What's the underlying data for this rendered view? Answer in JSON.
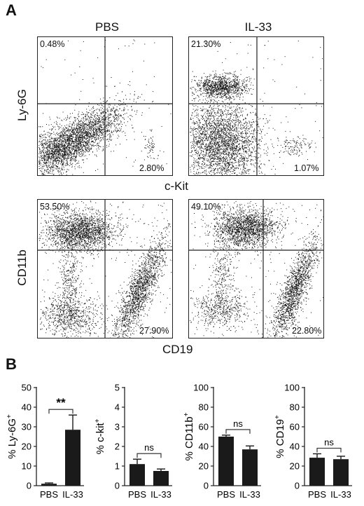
{
  "panel_labels": {
    "a": "A",
    "b": "B"
  },
  "flow_a": {
    "column_titles": [
      "PBS",
      "IL-33"
    ],
    "y_label": "Ly-6G",
    "x_label": "c-Kit",
    "plots": [
      {
        "upper_left": "0.48%",
        "lower_right": "2.80%"
      },
      {
        "upper_left": "21.30%",
        "lower_right": "1.07%"
      }
    ]
  },
  "flow_b": {
    "y_label": "CD11b",
    "x_label": "CD19",
    "plots": [
      {
        "upper_left": "53.50%",
        "lower_right": "27.90%"
      },
      {
        "upper_left": "49.10%",
        "lower_right": "22.80%"
      }
    ]
  },
  "chart_data": [
    {
      "type": "bar",
      "ylabel": "% Ly-6G+",
      "categories": [
        "PBS",
        "IL-33"
      ],
      "values": [
        1,
        28.5
      ],
      "errors": [
        0.4,
        7.5
      ],
      "ylim": [
        0,
        50
      ],
      "yticks": [
        0,
        10,
        20,
        30,
        40,
        50
      ],
      "significance": "**"
    },
    {
      "type": "bar",
      "ylabel": "% c-kit+",
      "categories": [
        "PBS",
        "IL-33"
      ],
      "values": [
        1.1,
        0.75
      ],
      "errors": [
        0.25,
        0.1
      ],
      "ylim": [
        0,
        5
      ],
      "yticks": [
        0,
        1,
        2,
        3,
        4,
        5
      ],
      "significance": "ns"
    },
    {
      "type": "bar",
      "ylabel": "% CD11b+",
      "categories": [
        "PBS",
        "IL-33"
      ],
      "values": [
        50,
        37
      ],
      "errors": [
        1.5,
        3.5
      ],
      "ylim": [
        0,
        100
      ],
      "yticks": [
        0,
        20,
        40,
        60,
        80,
        100
      ],
      "significance": "ns"
    },
    {
      "type": "bar",
      "ylabel": "% CD19+",
      "categories": [
        "PBS",
        "IL-33"
      ],
      "values": [
        28.5,
        27
      ],
      "errors": [
        4,
        3
      ],
      "ylim": [
        0,
        100
      ],
      "yticks": [
        0,
        20,
        40,
        60,
        80,
        100
      ],
      "significance": "ns"
    }
  ],
  "colors": {
    "bar": "#1a1a1a",
    "dots": "#111111",
    "axis": "#222222"
  }
}
